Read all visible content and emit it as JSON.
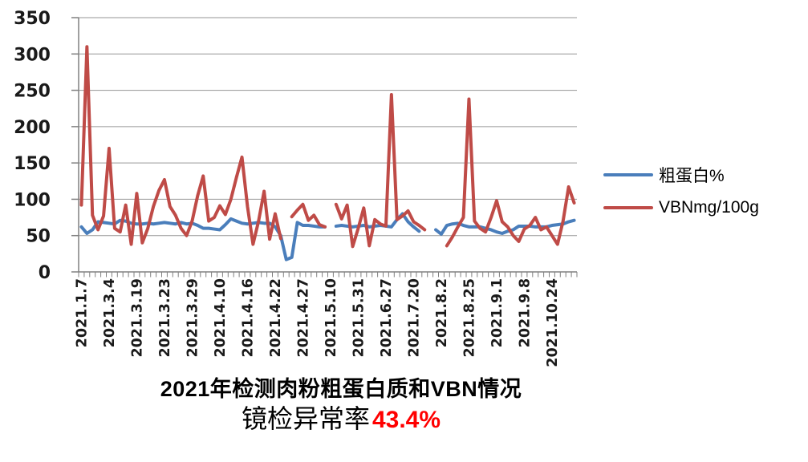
{
  "colors": {
    "protein_line": "#4a7ebb",
    "vbn_line": "#bf4b47",
    "grid": "#969696",
    "axis": "#808080",
    "axis_text": "#1a1a1a",
    "subtitle_highlight": "#ff0000",
    "title_text": "#000000",
    "background": "#ffffff"
  },
  "legend": {
    "items": [
      {
        "label": "粗蛋白%",
        "swatch_color": "#4a7ebb"
      },
      {
        "label": "VBNmg/100g",
        "swatch_color": "#bf4b47"
      }
    ]
  },
  "title": {
    "line1": "2021年检测肉粉粗蛋白质和VBN情况",
    "line2_prefix": "镜检异常率",
    "line2_value": "43.4%"
  },
  "chart_data": {
    "type": "line",
    "title": "2021年检测肉粉粗蛋白质和VBN情况",
    "subtitle": "镜检异常率43.4%",
    "xlabel": "",
    "ylabel": "",
    "ylim": [
      0,
      350
    ],
    "y_ticks": [
      0,
      50,
      100,
      150,
      200,
      250,
      300,
      350
    ],
    "grid": true,
    "legend_position": "right",
    "n_points": 90,
    "label_every": 5,
    "x_tick_labels": [
      "2021.1.7",
      "2021.3.4",
      "2021.3.19",
      "2021.3.23",
      "2021.3.29",
      "2021.4.10",
      "2021.4.16",
      "2021.4.22",
      "2021.4.27",
      "2021.5.10",
      "2021.5.31",
      "2021.6.27",
      "2021.7.20",
      "2021.8.2",
      "2021.8.25",
      "2021.9.1",
      "2021.9.8",
      "2021.10.24"
    ],
    "series": [
      {
        "name": "粗蛋白%",
        "color": "#4a7ebb",
        "values": [
          62,
          53,
          58,
          69,
          68,
          67,
          66,
          71,
          70,
          67,
          66,
          66,
          67,
          66,
          67,
          68,
          67,
          66,
          68,
          66,
          67,
          64,
          60,
          60,
          59,
          58,
          65,
          73,
          70,
          67,
          66,
          67,
          68,
          67,
          67,
          62,
          50,
          17,
          20,
          68,
          64,
          64,
          63,
          62,
          62,
          null,
          63,
          64,
          63,
          62,
          63,
          64,
          62,
          63,
          64,
          63,
          62,
          72,
          80,
          69,
          62,
          56,
          null,
          null,
          58,
          52,
          64,
          66,
          67,
          64,
          62,
          62,
          62,
          60,
          58,
          55,
          53,
          56,
          58,
          63,
          63,
          63,
          62,
          62,
          62,
          64,
          65,
          66,
          69,
          71
        ]
      },
      {
        "name": "VBNmg/100g",
        "color": "#bf4b47",
        "values": [
          92,
          310,
          78,
          58,
          77,
          170,
          60,
          55,
          92,
          38,
          108,
          40,
          60,
          90,
          112,
          127,
          90,
          78,
          60,
          50,
          70,
          105,
          132,
          70,
          75,
          91,
          79,
          100,
          130,
          158,
          90,
          38,
          70,
          111,
          45,
          80,
          46,
          null,
          76,
          85,
          93,
          71,
          78,
          65,
          62,
          null,
          93,
          73,
          92,
          35,
          60,
          88,
          36,
          72,
          66,
          63,
          244,
          72,
          77,
          84,
          69,
          64,
          58,
          null,
          null,
          null,
          36,
          48,
          62,
          75,
          238,
          70,
          60,
          55,
          75,
          98,
          69,
          62,
          50,
          42,
          59,
          64,
          75,
          58,
          62,
          50,
          38,
          70,
          117,
          95
        ]
      }
    ]
  }
}
